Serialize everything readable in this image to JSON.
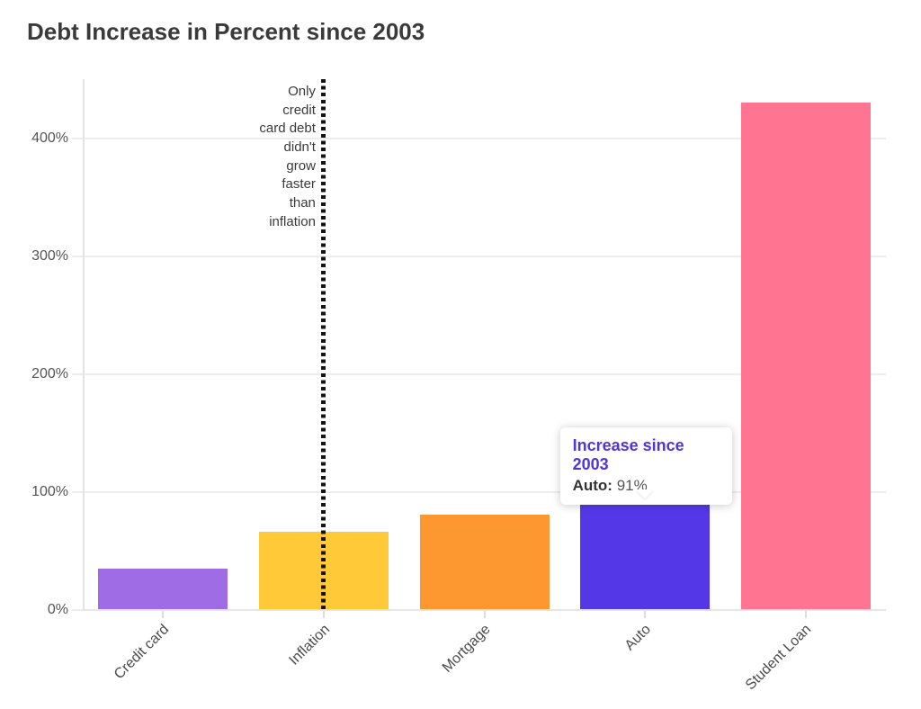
{
  "page": {
    "title": "Debt Increase in Percent since 2003"
  },
  "colors": {
    "title_text": "#3a3a3a",
    "axis_text": "#555555",
    "gridline": "#ededed",
    "annotation_line": "#141414",
    "tooltip_accent": "#4f35dc"
  },
  "chart_data": {
    "type": "bar",
    "title": "Debt Increase in Percent since 2003",
    "xlabel": "",
    "ylabel": "",
    "unit": "%",
    "categories": [
      "Credit card",
      "Inflation",
      "Mortgage",
      "Auto",
      "Student Loan"
    ],
    "values": [
      34,
      66,
      80,
      91,
      430
    ],
    "bar_colors": [
      "#a06ce6",
      "#ffc937",
      "#fd9730",
      "#5438e8",
      "#ff7490"
    ],
    "ylim": [
      0,
      450
    ],
    "yticks": [
      0,
      100,
      200,
      300,
      400
    ],
    "ytick_labels": [
      "0%",
      "100%",
      "200%",
      "300%",
      "400%"
    ],
    "grid": true,
    "legend": null,
    "annotation": {
      "lines": [
        "Only",
        "credit",
        "card debt",
        "didn't",
        "grow",
        "faster",
        "than",
        "inflation"
      ],
      "at_category": "Inflation",
      "line_style": "dotted-vertical"
    },
    "tooltip": {
      "title": "Increase since 2003",
      "label": "Auto:",
      "value": "91%",
      "target_category": "Auto"
    }
  }
}
